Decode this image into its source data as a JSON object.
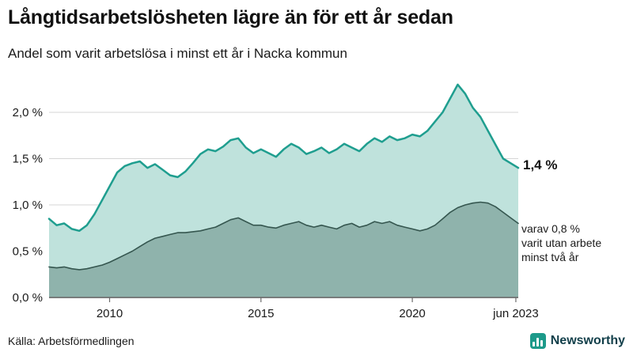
{
  "header": {
    "title": "Långtidsarbetslösheten lägre än för ett år sedan",
    "subtitle": "Andel som varit arbetslösa i minst ett år i Nacka kommun"
  },
  "chart_data": {
    "type": "area",
    "title": "Andel som varit arbetslösa i minst ett år i Nacka kommun",
    "xlabel": "",
    "ylabel": "",
    "xlim": [
      2008,
      2023.5
    ],
    "ylim": [
      0,
      2.45
    ],
    "grid": true,
    "x": [
      2008.0,
      2008.25,
      2008.5,
      2008.75,
      2009.0,
      2009.25,
      2009.5,
      2009.75,
      2010.0,
      2010.25,
      2010.5,
      2010.75,
      2011.0,
      2011.25,
      2011.5,
      2011.75,
      2012.0,
      2012.25,
      2012.5,
      2012.75,
      2013.0,
      2013.25,
      2013.5,
      2013.75,
      2014.0,
      2014.25,
      2014.5,
      2014.75,
      2015.0,
      2015.25,
      2015.5,
      2015.75,
      2016.0,
      2016.25,
      2016.5,
      2016.75,
      2017.0,
      2017.25,
      2017.5,
      2017.75,
      2018.0,
      2018.25,
      2018.5,
      2018.75,
      2019.0,
      2019.25,
      2019.5,
      2019.75,
      2020.0,
      2020.25,
      2020.5,
      2020.75,
      2021.0,
      2021.25,
      2021.5,
      2021.75,
      2022.0,
      2022.25,
      2022.5,
      2022.75,
      2023.0,
      2023.25,
      2023.5
    ],
    "series": [
      {
        "name": "Andel arbetslösa minst ett år",
        "stroke": "#1f9e8f",
        "fill": "#bfe2dc",
        "stroke_width": 2.5,
        "values": [
          0.85,
          0.78,
          0.8,
          0.74,
          0.72,
          0.78,
          0.9,
          1.05,
          1.2,
          1.35,
          1.42,
          1.45,
          1.47,
          1.4,
          1.44,
          1.38,
          1.32,
          1.3,
          1.36,
          1.45,
          1.55,
          1.6,
          1.58,
          1.63,
          1.7,
          1.72,
          1.62,
          1.56,
          1.6,
          1.56,
          1.52,
          1.6,
          1.66,
          1.62,
          1.55,
          1.58,
          1.62,
          1.56,
          1.6,
          1.66,
          1.62,
          1.58,
          1.66,
          1.72,
          1.68,
          1.74,
          1.7,
          1.72,
          1.76,
          1.74,
          1.8,
          1.9,
          2.0,
          2.15,
          2.3,
          2.2,
          2.05,
          1.95,
          1.8,
          1.65,
          1.5,
          1.45,
          1.4
        ]
      },
      {
        "name": "varav utan arbete minst två år",
        "stroke": "#35564f",
        "fill": "#8fb3ac",
        "stroke_width": 1.6,
        "values": [
          0.33,
          0.32,
          0.33,
          0.31,
          0.3,
          0.31,
          0.33,
          0.35,
          0.38,
          0.42,
          0.46,
          0.5,
          0.55,
          0.6,
          0.64,
          0.66,
          0.68,
          0.7,
          0.7,
          0.71,
          0.72,
          0.74,
          0.76,
          0.8,
          0.84,
          0.86,
          0.82,
          0.78,
          0.78,
          0.76,
          0.75,
          0.78,
          0.8,
          0.82,
          0.78,
          0.76,
          0.78,
          0.76,
          0.74,
          0.78,
          0.8,
          0.76,
          0.78,
          0.82,
          0.8,
          0.82,
          0.78,
          0.76,
          0.74,
          0.72,
          0.74,
          0.78,
          0.85,
          0.92,
          0.97,
          1.0,
          1.02,
          1.03,
          1.02,
          0.98,
          0.92,
          0.86,
          0.8
        ]
      }
    ],
    "yticks": [
      {
        "value": 0.0,
        "label": "0,0 %"
      },
      {
        "value": 0.5,
        "label": "0,5 %"
      },
      {
        "value": 1.0,
        "label": "1,0 %"
      },
      {
        "value": 1.5,
        "label": "1,5 %"
      },
      {
        "value": 2.0,
        "label": "2,0 %"
      }
    ],
    "xticks": [
      {
        "value": 2010,
        "label": "2010"
      },
      {
        "value": 2015,
        "label": "2015"
      },
      {
        "value": 2020,
        "label": "2020"
      },
      {
        "value": 2023.42,
        "label": "jun 2023"
      }
    ],
    "annotations": {
      "end_label": "1,4 %",
      "secondary": [
        "varav 0,8 %",
        "varit utan arbete",
        "minst två år"
      ]
    },
    "colors": {
      "grid": "#d6d6d6",
      "axis": "#6b6b6b",
      "tick_text": "#1a1a1a"
    }
  },
  "footer": {
    "source": "Källa: Arbetsförmedlingen",
    "brand": "Newsworthy"
  }
}
